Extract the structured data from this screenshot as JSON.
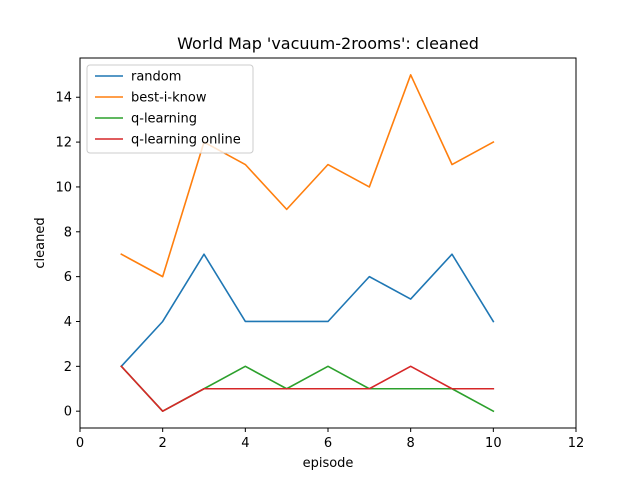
{
  "chart_data": {
    "type": "line",
    "title": "World Map 'vacuum-2rooms': cleaned",
    "xlabel": "episode",
    "ylabel": "cleaned",
    "xlim": [
      0,
      12
    ],
    "ylim": [
      -0.75,
      15.75
    ],
    "xticks": [
      0,
      2,
      4,
      6,
      8,
      10,
      12
    ],
    "yticks": [
      0,
      2,
      4,
      6,
      8,
      10,
      12,
      14
    ],
    "grid": false,
    "legend_position": "upper-left",
    "x": [
      1,
      2,
      3,
      4,
      5,
      6,
      7,
      8,
      9,
      10
    ],
    "series": [
      {
        "name": "random",
        "color": "#1f77b4",
        "values": [
          2,
          4,
          7,
          4,
          4,
          4,
          6,
          5,
          7,
          4
        ]
      },
      {
        "name": "best-i-know",
        "color": "#ff7f0e",
        "values": [
          7,
          6,
          12,
          11,
          9,
          11,
          10,
          15,
          11,
          12
        ]
      },
      {
        "name": "q-learning",
        "color": "#2ca02c",
        "values": [
          2,
          0,
          1,
          2,
          1,
          2,
          1,
          1,
          1,
          0
        ]
      },
      {
        "name": "q-learning online",
        "color": "#d62728",
        "values": [
          2,
          0,
          1,
          1,
          1,
          1,
          1,
          2,
          1,
          1
        ]
      }
    ]
  }
}
